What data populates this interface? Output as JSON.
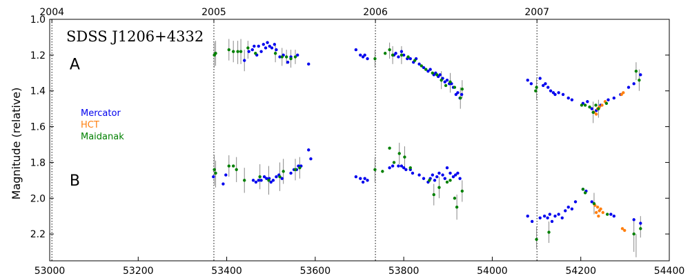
{
  "chart_data": {
    "type": "scatter",
    "title": "SDSS J1206+4332",
    "xlabel": "",
    "ylabel": "Magnitude (relative)",
    "xlim": [
      53000,
      54400
    ],
    "ylim": [
      2.35,
      1.0
    ],
    "y_inverted": true,
    "grid": false,
    "legend_placement": "left",
    "x_ticks": [
      53000,
      53200,
      53400,
      53600,
      53800,
      54000,
      54200,
      54400
    ],
    "y_ticks": [
      1.0,
      1.2,
      1.4,
      1.6,
      1.8,
      2.0,
      2.2
    ],
    "year_markers": [
      {
        "label": "2004",
        "x": 53005
      },
      {
        "label": "2005",
        "x": 53371
      },
      {
        "label": "2006",
        "x": 53736
      },
      {
        "label": "2007",
        "x": 54101
      }
    ],
    "image_labels": [
      {
        "label": "A",
        "x": 53045,
        "y": 1.28
      },
      {
        "label": "B",
        "x": 53045,
        "y": 1.93
      }
    ],
    "series": [
      {
        "name": "Mercator",
        "color": "#0000ee",
        "points": [
          [
            53440,
            1.23
          ],
          [
            53450,
            1.18
          ],
          [
            53458,
            1.17
          ],
          [
            53462,
            1.15
          ],
          [
            53468,
            1.2
          ],
          [
            53472,
            1.15
          ],
          [
            53478,
            1.18
          ],
          [
            53483,
            1.14
          ],
          [
            53488,
            1.16
          ],
          [
            53492,
            1.13
          ],
          [
            53497,
            1.15
          ],
          [
            53502,
            1.16
          ],
          [
            53508,
            1.14
          ],
          [
            53512,
            1.17
          ],
          [
            53520,
            1.21
          ],
          [
            53528,
            1.2
          ],
          [
            53538,
            1.24
          ],
          [
            53545,
            1.21
          ],
          [
            53560,
            1.2
          ],
          [
            53585,
            1.25
          ],
          [
            53692,
            1.17
          ],
          [
            53702,
            1.2
          ],
          [
            53708,
            1.21
          ],
          [
            53712,
            1.2
          ],
          [
            53718,
            1.22
          ],
          [
            53778,
            1.2
          ],
          [
            53782,
            1.19
          ],
          [
            53788,
            1.21
          ],
          [
            53795,
            1.18
          ],
          [
            53800,
            1.2
          ],
          [
            53808,
            1.22
          ],
          [
            53815,
            1.22
          ],
          [
            53822,
            1.24
          ],
          [
            53828,
            1.22
          ],
          [
            53835,
            1.25
          ],
          [
            53845,
            1.27
          ],
          [
            53855,
            1.29
          ],
          [
            53860,
            1.28
          ],
          [
            53868,
            1.31
          ],
          [
            53872,
            1.3
          ],
          [
            53878,
            1.32
          ],
          [
            53882,
            1.31
          ],
          [
            53888,
            1.33
          ],
          [
            53893,
            1.35
          ],
          [
            53898,
            1.34
          ],
          [
            53903,
            1.36
          ],
          [
            53908,
            1.36
          ],
          [
            53912,
            1.38
          ],
          [
            53918,
            1.42
          ],
          [
            53922,
            1.41
          ],
          [
            53927,
            1.44
          ],
          [
            53931,
            1.42
          ],
          [
            54080,
            1.34
          ],
          [
            54088,
            1.36
          ],
          [
            54108,
            1.33
          ],
          [
            54115,
            1.37
          ],
          [
            54120,
            1.36
          ],
          [
            54126,
            1.38
          ],
          [
            54132,
            1.4
          ],
          [
            54138,
            1.41
          ],
          [
            54142,
            1.42
          ],
          [
            54150,
            1.41
          ],
          [
            54160,
            1.42
          ],
          [
            54172,
            1.44
          ],
          [
            54180,
            1.45
          ],
          [
            54205,
            1.47
          ],
          [
            54215,
            1.46
          ],
          [
            54225,
            1.5
          ],
          [
            54235,
            1.51
          ],
          [
            54245,
            1.48
          ],
          [
            54262,
            1.45
          ],
          [
            54275,
            1.44
          ],
          [
            54290,
            1.42
          ],
          [
            54308,
            1.38
          ],
          [
            54320,
            1.36
          ],
          [
            54335,
            1.31
          ],
          [
            53370,
            1.88
          ],
          [
            53392,
            1.92
          ],
          [
            53398,
            1.87
          ],
          [
            53460,
            1.9
          ],
          [
            53466,
            1.91
          ],
          [
            53472,
            1.9
          ],
          [
            53478,
            1.9
          ],
          [
            53485,
            1.88
          ],
          [
            53490,
            1.89
          ],
          [
            53496,
            1.89
          ],
          [
            53500,
            1.91
          ],
          [
            53505,
            1.9
          ],
          [
            53512,
            1.88
          ],
          [
            53518,
            1.87
          ],
          [
            53525,
            1.89
          ],
          [
            53545,
            1.86
          ],
          [
            53552,
            1.84
          ],
          [
            53558,
            1.84
          ],
          [
            53562,
            1.82
          ],
          [
            53568,
            1.82
          ],
          [
            53585,
            1.73
          ],
          [
            53590,
            1.78
          ],
          [
            53692,
            1.88
          ],
          [
            53702,
            1.89
          ],
          [
            53708,
            1.91
          ],
          [
            53712,
            1.89
          ],
          [
            53718,
            1.9
          ],
          [
            53768,
            1.83
          ],
          [
            53775,
            1.82
          ],
          [
            53788,
            1.82
          ],
          [
            53795,
            1.82
          ],
          [
            53800,
            1.83
          ],
          [
            53805,
            1.84
          ],
          [
            53815,
            1.84
          ],
          [
            53820,
            1.86
          ],
          [
            53835,
            1.87
          ],
          [
            53845,
            1.89
          ],
          [
            53855,
            1.91
          ],
          [
            53860,
            1.89
          ],
          [
            53865,
            1.87
          ],
          [
            53870,
            1.9
          ],
          [
            53875,
            1.88
          ],
          [
            53880,
            1.86
          ],
          [
            53888,
            1.87
          ],
          [
            53893,
            1.89
          ],
          [
            53898,
            1.83
          ],
          [
            53905,
            1.86
          ],
          [
            53912,
            1.88
          ],
          [
            53917,
            1.87
          ],
          [
            53922,
            1.86
          ],
          [
            53927,
            1.89
          ],
          [
            54080,
            2.1
          ],
          [
            54090,
            2.13
          ],
          [
            54108,
            2.11
          ],
          [
            54118,
            2.1
          ],
          [
            54125,
            2.11
          ],
          [
            54130,
            2.09
          ],
          [
            54135,
            2.13
          ],
          [
            54142,
            2.1
          ],
          [
            54150,
            2.09
          ],
          [
            54158,
            2.11
          ],
          [
            54165,
            2.07
          ],
          [
            54172,
            2.05
          ],
          [
            54180,
            2.06
          ],
          [
            54188,
            2.02
          ],
          [
            54205,
            1.95
          ],
          [
            54212,
            1.96
          ],
          [
            54225,
            2.02
          ],
          [
            54268,
            2.09
          ],
          [
            54275,
            2.1
          ],
          [
            54320,
            2.12
          ],
          [
            54335,
            2.14
          ]
        ]
      },
      {
        "name": "HCT",
        "color": "#ff7f0e",
        "points": [
          [
            54230,
            1.52
          ],
          [
            54235,
            1.53
          ],
          [
            54238,
            1.5
          ],
          [
            54242,
            1.49
          ],
          [
            54248,
            1.48
          ],
          [
            54255,
            1.46
          ],
          [
            54292,
            1.42
          ],
          [
            54296,
            1.41
          ],
          [
            54232,
            2.04
          ],
          [
            54238,
            2.05
          ],
          [
            54242,
            2.07
          ],
          [
            54245,
            2.06
          ],
          [
            54250,
            2.08
          ],
          [
            54235,
            2.08
          ],
          [
            54240,
            2.1
          ],
          [
            54294,
            2.17
          ],
          [
            54299,
            2.18
          ]
        ]
      },
      {
        "name": "Maidanak",
        "color": "#008000",
        "points": [
          [
            53372,
            1.2
          ],
          [
            53375,
            1.19
          ],
          [
            53405,
            1.17
          ],
          [
            53415,
            1.18
          ],
          [
            53425,
            1.18
          ],
          [
            53432,
            1.18
          ],
          [
            53448,
            1.16
          ],
          [
            53465,
            1.19
          ],
          [
            53510,
            1.19
          ],
          [
            53525,
            1.21
          ],
          [
            53535,
            1.21
          ],
          [
            53545,
            1.22
          ],
          [
            53555,
            1.21
          ],
          [
            53735,
            1.22
          ],
          [
            53758,
            1.19
          ],
          [
            53768,
            1.17
          ],
          [
            53775,
            1.2
          ],
          [
            53795,
            1.2
          ],
          [
            53810,
            1.21
          ],
          [
            53825,
            1.23
          ],
          [
            53840,
            1.26
          ],
          [
            53850,
            1.28
          ],
          [
            53865,
            1.3
          ],
          [
            53875,
            1.31
          ],
          [
            53885,
            1.34
          ],
          [
            53895,
            1.37
          ],
          [
            53905,
            1.35
          ],
          [
            53915,
            1.38
          ],
          [
            53928,
            1.44
          ],
          [
            53932,
            1.39
          ],
          [
            54098,
            1.4
          ],
          [
            54100,
            1.38
          ],
          [
            54202,
            1.48
          ],
          [
            54210,
            1.48
          ],
          [
            54220,
            1.49
          ],
          [
            54228,
            1.52
          ],
          [
            54234,
            1.48
          ],
          [
            54240,
            1.5
          ],
          [
            54258,
            1.47
          ],
          [
            54325,
            1.29
          ],
          [
            54332,
            1.34
          ],
          [
            53372,
            1.84
          ],
          [
            53375,
            1.86
          ],
          [
            53405,
            1.82
          ],
          [
            53415,
            1.82
          ],
          [
            53422,
            1.84
          ],
          [
            53440,
            1.9
          ],
          [
            53475,
            1.88
          ],
          [
            53495,
            1.9
          ],
          [
            53520,
            1.88
          ],
          [
            53528,
            1.85
          ],
          [
            53555,
            1.84
          ],
          [
            53565,
            1.83
          ],
          [
            53735,
            1.84
          ],
          [
            53752,
            1.85
          ],
          [
            53768,
            1.72
          ],
          [
            53778,
            1.8
          ],
          [
            53790,
            1.75
          ],
          [
            53802,
            1.77
          ],
          [
            53815,
            1.83
          ],
          [
            53858,
            1.9
          ],
          [
            53868,
            1.98
          ],
          [
            53880,
            1.94
          ],
          [
            53898,
            1.91
          ],
          [
            53905,
            1.9
          ],
          [
            53915,
            2.0
          ],
          [
            53920,
            2.05
          ],
          [
            53932,
            1.96
          ],
          [
            54100,
            2.23
          ],
          [
            54128,
            2.19
          ],
          [
            54205,
            1.95
          ],
          [
            54210,
            1.97
          ],
          [
            54230,
            2.03
          ],
          [
            54260,
            2.09
          ],
          [
            54320,
            2.2
          ],
          [
            54335,
            2.17
          ]
        ]
      }
    ],
    "error_bars": [
      {
        "x": 53372,
        "y1": 1.13,
        "y2": 1.27
      },
      {
        "x": 53375,
        "y1": 1.12,
        "y2": 1.26
      },
      {
        "x": 53405,
        "y1": 1.11,
        "y2": 1.23
      },
      {
        "x": 53415,
        "y1": 1.12,
        "y2": 1.24
      },
      {
        "x": 53425,
        "y1": 1.12,
        "y2": 1.25
      },
      {
        "x": 53432,
        "y1": 1.11,
        "y2": 1.25
      },
      {
        "x": 53440,
        "y1": 1.17,
        "y2": 1.29
      },
      {
        "x": 53448,
        "y1": 1.12,
        "y2": 1.22
      },
      {
        "x": 53510,
        "y1": 1.14,
        "y2": 1.24
      },
      {
        "x": 53525,
        "y1": 1.16,
        "y2": 1.26
      },
      {
        "x": 53535,
        "y1": 1.17,
        "y2": 1.25
      },
      {
        "x": 53545,
        "y1": 1.17,
        "y2": 1.27
      },
      {
        "x": 53555,
        "y1": 1.17,
        "y2": 1.25
      },
      {
        "x": 53735,
        "y1": 1.17,
        "y2": 1.27
      },
      {
        "x": 53768,
        "y1": 1.13,
        "y2": 1.22
      },
      {
        "x": 53775,
        "y1": 1.15,
        "y2": 1.25
      },
      {
        "x": 53795,
        "y1": 1.15,
        "y2": 1.25
      },
      {
        "x": 53885,
        "y1": 1.29,
        "y2": 1.39
      },
      {
        "x": 53905,
        "y1": 1.3,
        "y2": 1.41
      },
      {
        "x": 53928,
        "y1": 1.38,
        "y2": 1.5
      },
      {
        "x": 53932,
        "y1": 1.34,
        "y2": 1.44
      },
      {
        "x": 54100,
        "y1": 1.33,
        "y2": 1.45
      },
      {
        "x": 54228,
        "y1": 1.46,
        "y2": 1.58
      },
      {
        "x": 54240,
        "y1": 1.45,
        "y2": 1.55
      },
      {
        "x": 54325,
        "y1": 1.24,
        "y2": 1.34
      },
      {
        "x": 54332,
        "y1": 1.28,
        "y2": 1.4
      },
      {
        "x": 53372,
        "y1": 1.76,
        "y2": 1.93
      },
      {
        "x": 53375,
        "y1": 1.79,
        "y2": 1.94
      },
      {
        "x": 53405,
        "y1": 1.76,
        "y2": 1.88
      },
      {
        "x": 53422,
        "y1": 1.77,
        "y2": 1.91
      },
      {
        "x": 53440,
        "y1": 1.83,
        "y2": 1.97
      },
      {
        "x": 53475,
        "y1": 1.81,
        "y2": 1.95
      },
      {
        "x": 53495,
        "y1": 1.82,
        "y2": 1.98
      },
      {
        "x": 53520,
        "y1": 1.8,
        "y2": 1.96
      },
      {
        "x": 53528,
        "y1": 1.78,
        "y2": 1.92
      },
      {
        "x": 53555,
        "y1": 1.78,
        "y2": 1.9
      },
      {
        "x": 53565,
        "y1": 1.77,
        "y2": 1.89
      },
      {
        "x": 53735,
        "y1": 1.77,
        "y2": 1.91
      },
      {
        "x": 53790,
        "y1": 1.69,
        "y2": 1.81
      },
      {
        "x": 53802,
        "y1": 1.71,
        "y2": 1.83
      },
      {
        "x": 53868,
        "y1": 1.92,
        "y2": 2.04
      },
      {
        "x": 53880,
        "y1": 1.88,
        "y2": 2.0
      },
      {
        "x": 53920,
        "y1": 1.98,
        "y2": 2.12
      },
      {
        "x": 53932,
        "y1": 1.9,
        "y2": 2.02
      },
      {
        "x": 54100,
        "y1": 2.16,
        "y2": 2.28
      },
      {
        "x": 54128,
        "y1": 2.13,
        "y2": 2.25
      },
      {
        "x": 54230,
        "y1": 1.97,
        "y2": 2.09
      },
      {
        "x": 54320,
        "y1": 2.12,
        "y2": 2.3
      },
      {
        "x": 54325,
        "y1": 2.2,
        "y2": 2.33
      },
      {
        "x": 54335,
        "y1": 2.1,
        "y2": 2.22
      }
    ]
  }
}
